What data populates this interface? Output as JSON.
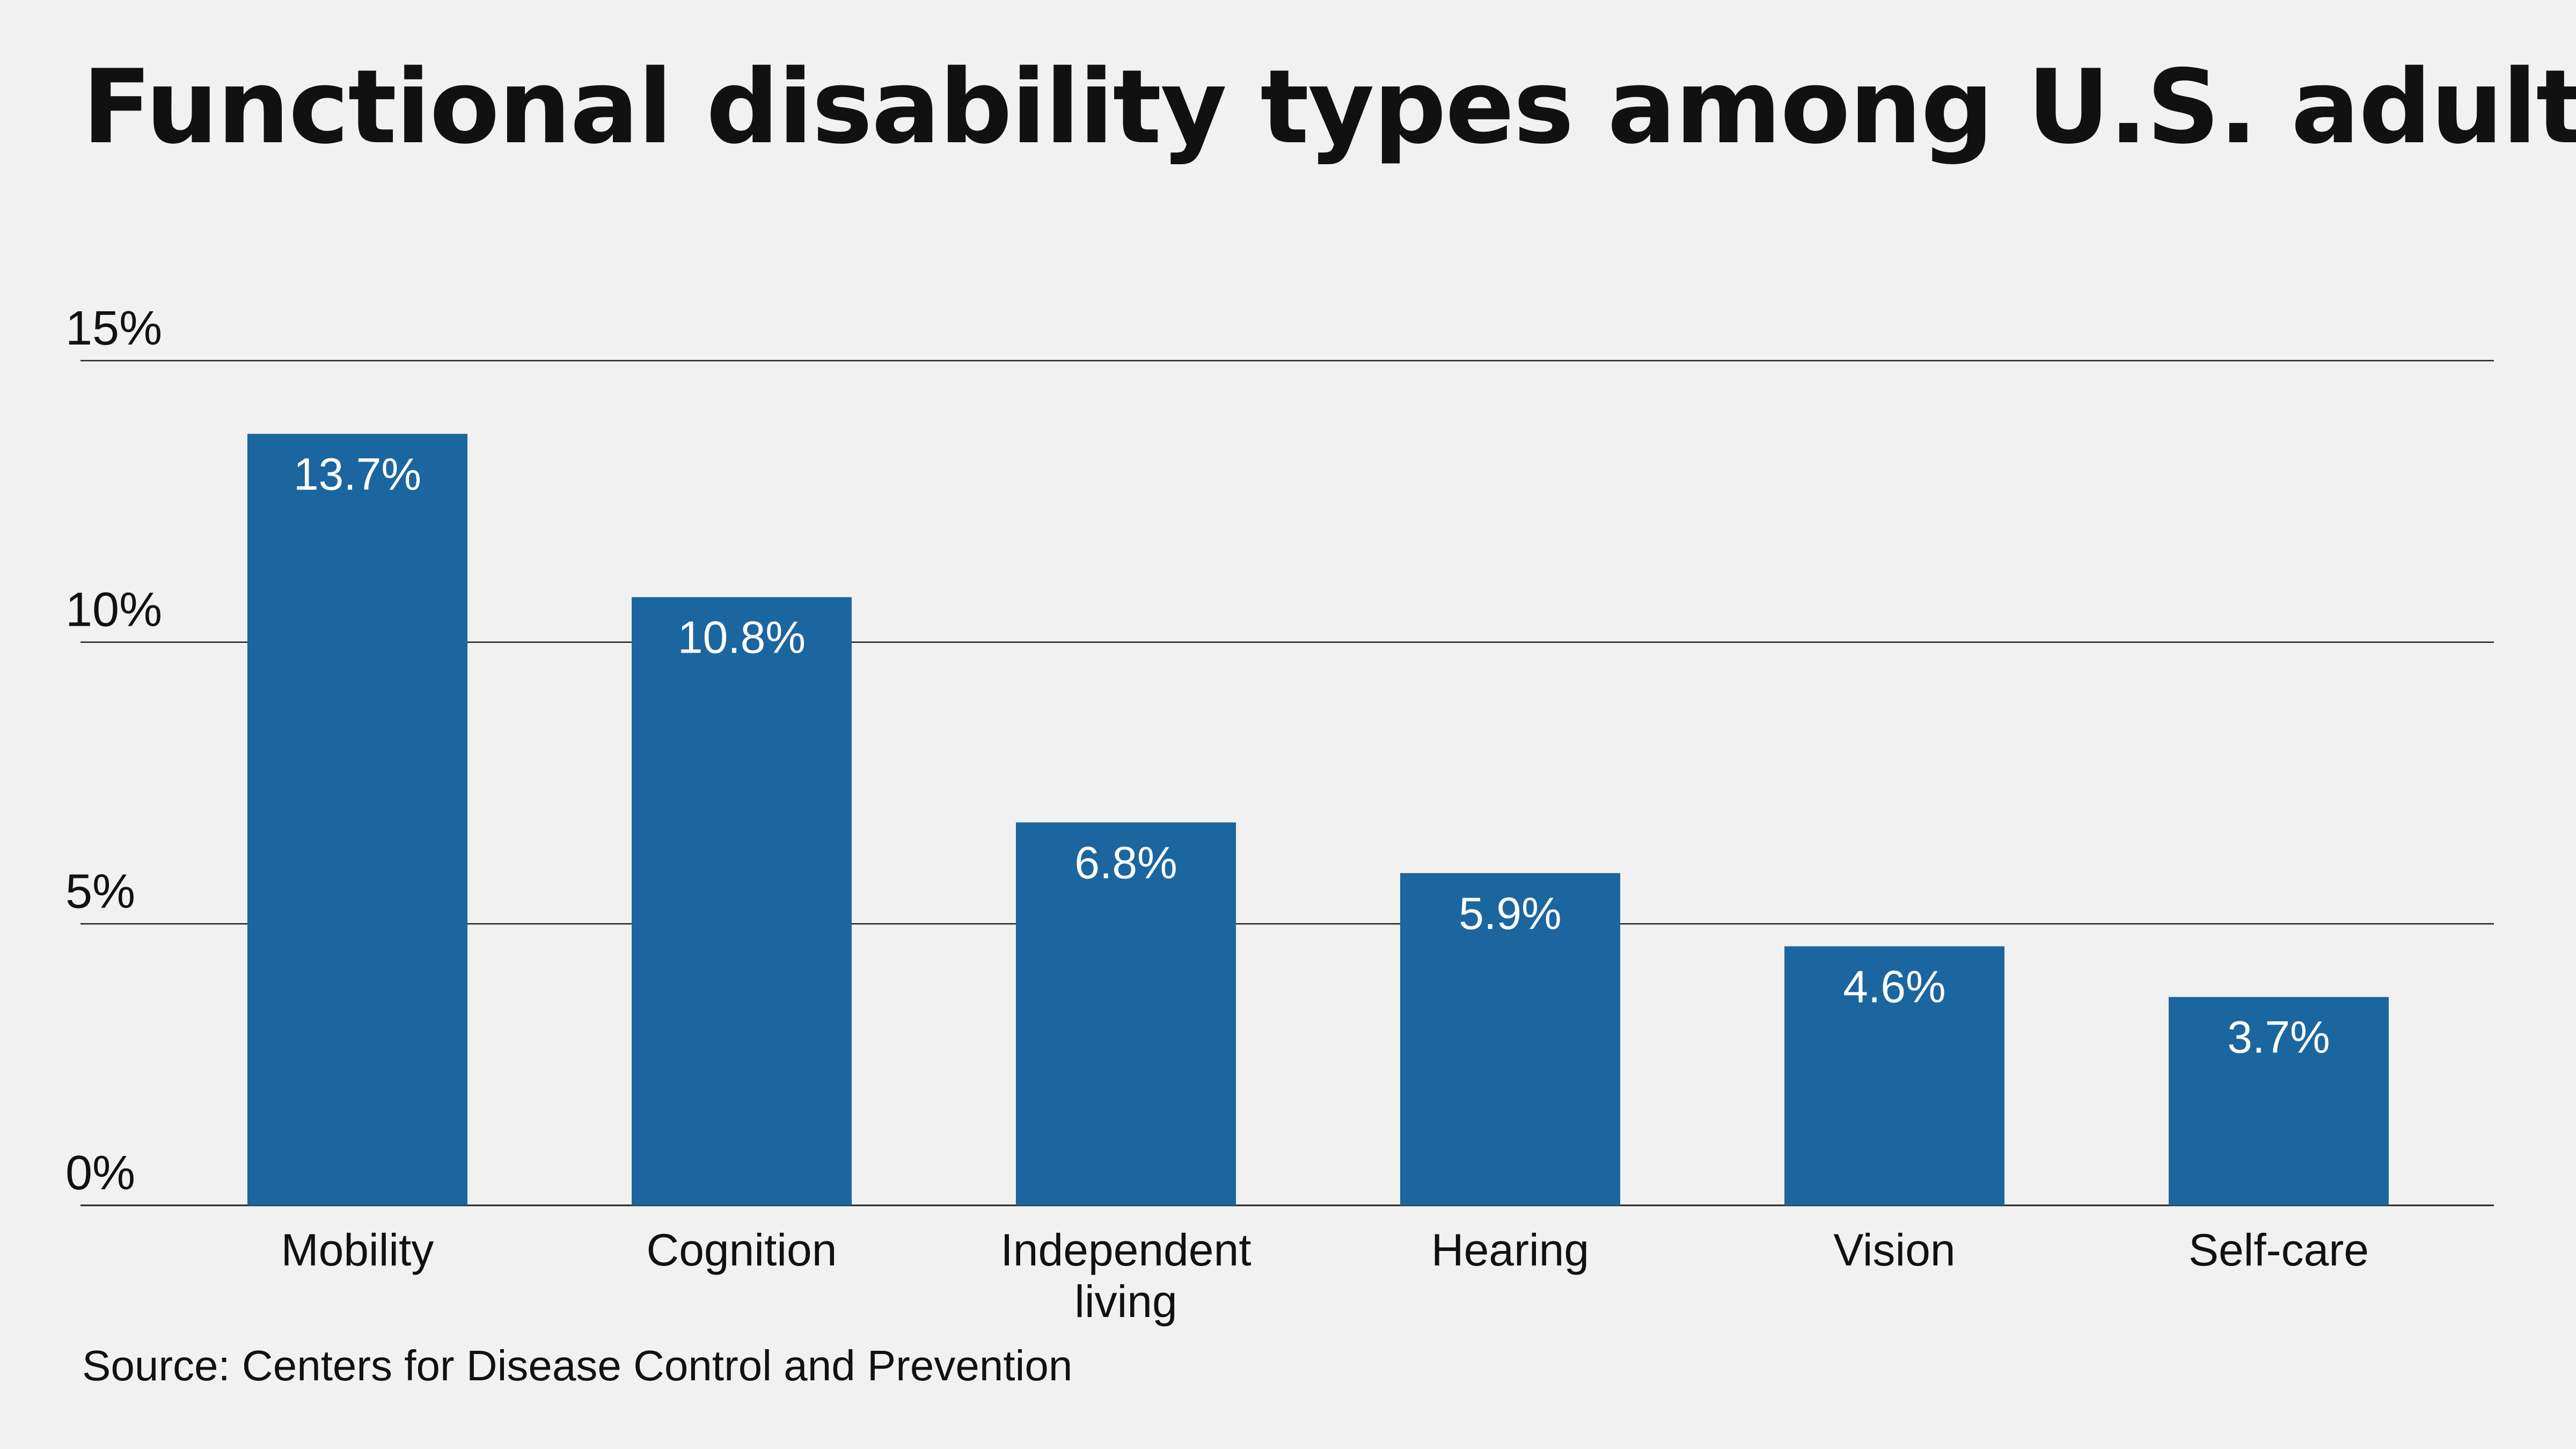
{
  "title": "Functional disability types among U.S. adults",
  "source": "Source: Centers for Disease Control and Prevention",
  "colors": {
    "bar": "#1b669e",
    "background": "#f0f1f0",
    "gridline": "#222222",
    "text": "#111111",
    "data_label": "#ffffff"
  },
  "chart_data": {
    "type": "bar",
    "categories": [
      "Mobility",
      "Cognition",
      "Independent living",
      "Hearing",
      "Vision",
      "Self-care"
    ],
    "category_labels": [
      [
        "Mobility"
      ],
      [
        "Cognition"
      ],
      [
        "Independent",
        "living"
      ],
      [
        "Hearing"
      ],
      [
        "Vision"
      ],
      [
        "Self-care"
      ]
    ],
    "values": [
      13.7,
      10.8,
      6.8,
      5.9,
      4.6,
      3.7
    ],
    "data_labels": [
      "13.7%",
      "10.8%",
      "6.8%",
      "5.9%",
      "4.6%",
      "3.7%"
    ],
    "y_ticks": [
      0,
      5,
      10,
      15
    ],
    "y_tick_labels": [
      "0%",
      "5%",
      "10%",
      "15%"
    ],
    "ylim": [
      0,
      15
    ],
    "grid": true,
    "legend": "none"
  }
}
